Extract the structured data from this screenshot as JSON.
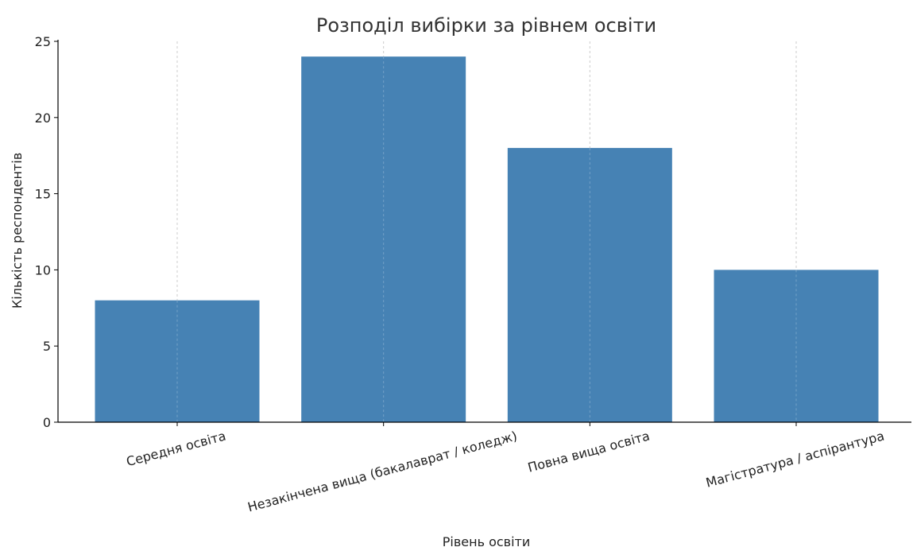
{
  "chart_data": {
    "type": "bar",
    "title": "Розподіл вибірки за рівнем освіти",
    "xlabel": "Рівень освіти",
    "ylabel": "Кількість респондентів",
    "categories": [
      "Середня освіта",
      "Незакінчена вища (бакалаврат / коледж)",
      "Повна вища освіта",
      "Магістратура / аспірантура"
    ],
    "values": [
      8,
      24,
      18,
      10
    ],
    "ylim": [
      0,
      25
    ],
    "yticks": [
      0,
      5,
      10,
      15,
      20,
      25
    ],
    "grid": "vertical dashed at categories",
    "bar_color": "#4682b4"
  }
}
